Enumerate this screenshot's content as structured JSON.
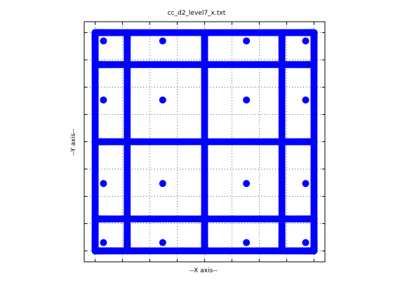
{
  "chart_data": {
    "type": "scatter",
    "title": "cc_d2_level7_x.txt",
    "xlabel": "--X axis--",
    "ylabel": "--Y axis--",
    "xlim": [
      -1.1,
      1.1
    ],
    "ylim": [
      -1.1,
      1.1
    ],
    "grid": true,
    "tick_labels_visible": false,
    "marker_color": "#0000ff",
    "dense_lines": [
      -1.0,
      -0.70711,
      0.0,
      0.70711,
      1.0
    ],
    "interior_levels": [
      -0.92388,
      -0.70711,
      -0.38268,
      0.0,
      0.38268,
      0.70711,
      0.92388
    ],
    "cross_only_levels": [
      -0.83147,
      -0.55557,
      -0.19509,
      0.19509,
      0.55557,
      0.83147,
      -0.98079,
      0.98079
    ],
    "note_on_encoding": ""
  }
}
